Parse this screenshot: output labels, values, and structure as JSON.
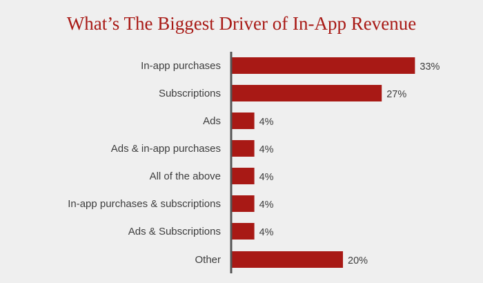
{
  "chart_data": {
    "type": "bar",
    "orientation": "horizontal",
    "title": "What’s The Biggest Driver of In-App Revenue",
    "categories": [
      "In-app purchases",
      "Subscriptions",
      "Ads",
      "Ads & in-app purchases",
      "All of the above",
      "In-app purchases & subscriptions",
      "Ads & Subscriptions",
      "Other"
    ],
    "values": [
      33,
      27,
      4,
      4,
      4,
      4,
      4,
      20
    ],
    "value_labels": [
      "33%",
      "27%",
      "4%",
      "4%",
      "4%",
      "4%",
      "4%",
      "20%"
    ],
    "unit": "%",
    "xlim": [
      0,
      37
    ],
    "grid": false,
    "legend": "none",
    "colors": {
      "bar": "#a81915",
      "axis": "#555555",
      "title": "#a81915",
      "text": "#3d3d3d",
      "background": "#efefef"
    }
  }
}
